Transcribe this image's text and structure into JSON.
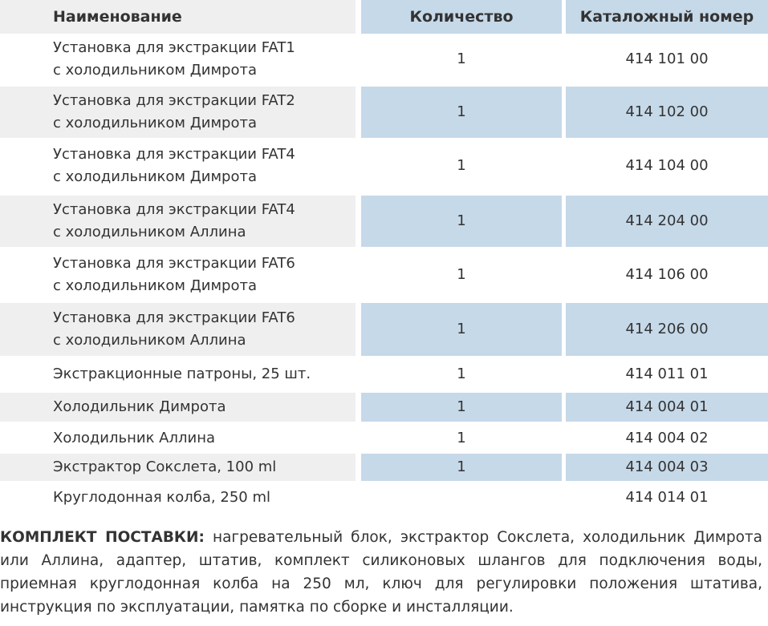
{
  "table": {
    "header": [
      "Наименование",
      "Количество",
      "Каталожный номер"
    ],
    "rows": [
      [
        "Установка для экстракции FAT1\nс холодильником Димрота",
        "1",
        "414 101 00"
      ],
      [
        "Установка для экстракции FAT2\nс холодильником Димрота",
        "1",
        "414 102 00"
      ],
      [
        "Установка для экстракции FAT4\nс холодильником Димрота",
        "1",
        "414 104 00"
      ],
      [
        "Установка для экстракции FAT4\nс холодильником Аллина",
        "1",
        "414 204 00"
      ],
      [
        "Установка для экстракции FAT6\nс холодильником Димрота",
        "1",
        "414 106 00"
      ],
      [
        "Установка для экстракции FAT6\nс холодильником Аллина",
        "1",
        "414 206 00"
      ],
      [
        "Экстракционные патроны, 25 шт.",
        "1",
        "414 011 01"
      ],
      [
        "Холодильник Димрота",
        "1",
        "414 004 01"
      ],
      [
        "Холодильник Аллина",
        "1",
        "414 004 02"
      ],
      [
        "Экстрактор Сокслета, 100 ml",
        "1",
        "414 004 03"
      ],
      [
        "Круглодонная колба, 250 ml",
        null,
        "414 014 01"
      ]
    ]
  },
  "note": {
    "label": "КОМПЛЕКТ ПОСТАВКИ:",
    "text": "нагревательный блок, экстрактор Сокслета, холодильник Димрота или Аллина, адаптер, штатив, комплект силиконовых шлангов для подключения воды, приемная круглодонная колба на 250 мл, ключ для регулировки положения штатива, инструкция по эксплуатации, памятка по сборке и инсталляции."
  }
}
